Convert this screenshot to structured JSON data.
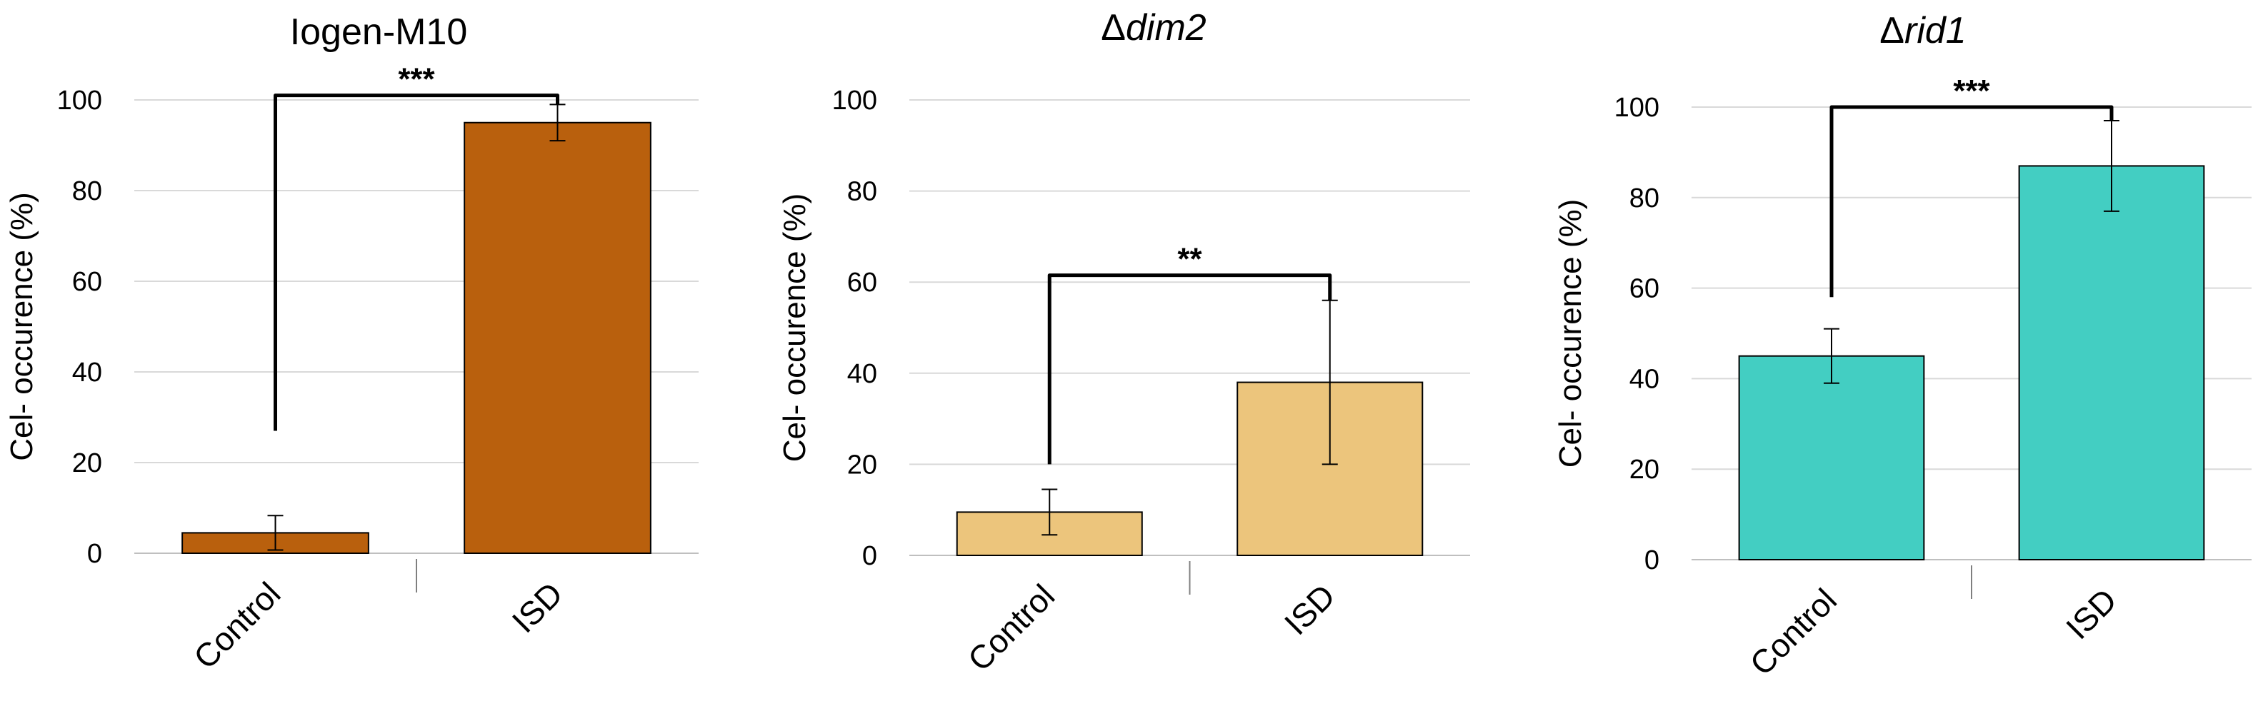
{
  "chart_data": [
    {
      "type": "bar",
      "title": "Iogen-M10",
      "title_italic": false,
      "title_prefix": "",
      "ylabel": "Cel- occurence (%)",
      "categories": [
        "Control",
        "ISD"
      ],
      "values": [
        4.5,
        95
      ],
      "error": [
        3.8,
        4
      ],
      "bar_color": "#B9600D",
      "ylim": [
        0,
        100
      ],
      "yticks": [
        0,
        20,
        40,
        60,
        80,
        100
      ],
      "grid": true,
      "significance": "***",
      "bracket_left_bottom": 27,
      "bracket_right_bottom": 99,
      "bracket_top": 101
    },
    {
      "type": "bar",
      "title": "dim2",
      "title_italic": true,
      "title_prefix": "Δ",
      "ylabel": "Cel- occurence (%)",
      "categories": [
        "Control",
        "ISD"
      ],
      "values": [
        9.5,
        38
      ],
      "error": [
        5,
        18
      ],
      "bar_color": "#ECC57C",
      "ylim": [
        0,
        100
      ],
      "yticks": [
        0,
        20,
        40,
        60,
        80,
        100
      ],
      "grid": true,
      "significance": "**",
      "bracket_left_bottom": 20,
      "bracket_right_bottom": 56,
      "bracket_top": 61.5
    },
    {
      "type": "bar",
      "title": "rid1",
      "title_italic": true,
      "title_prefix": "Δ",
      "ylabel": "Cel- occurence (%)",
      "categories": [
        "Control",
        "ISD"
      ],
      "values": [
        45,
        87
      ],
      "error": [
        6,
        10
      ],
      "bar_color": "#43CEC2",
      "ylim": [
        0,
        100
      ],
      "yticks": [
        0,
        20,
        40,
        60,
        80,
        100
      ],
      "grid": true,
      "significance": "***",
      "bracket_left_bottom": 58,
      "bracket_right_bottom": 97,
      "bracket_top": 100
    }
  ]
}
